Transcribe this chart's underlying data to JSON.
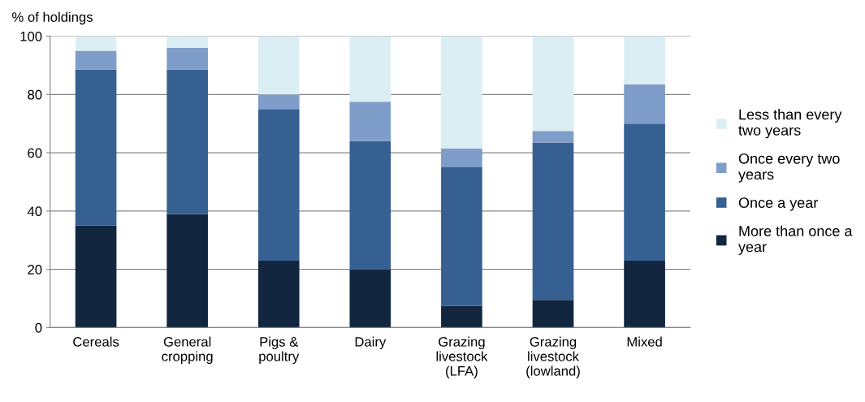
{
  "chart_data": {
    "type": "bar",
    "stacked": true,
    "ylabel": "% of holdings",
    "categories": [
      "Cereals",
      "General\ncropping",
      "Pigs &\npoultry",
      "Dairy",
      "Grazing\nlivestock\n(LFA)",
      "Grazing\nlivestock\n(lowland)",
      "Mixed"
    ],
    "series": [
      {
        "name": "More than once a year",
        "color": "#12263f",
        "values": [
          35,
          39,
          23,
          20,
          7.5,
          9.5,
          23
        ]
      },
      {
        "name": "Once a year",
        "color": "#366092",
        "values": [
          53.5,
          49.5,
          52,
          44,
          47.5,
          54,
          47
        ]
      },
      {
        "name": "Once every two years",
        "color": "#7f9dc9",
        "values": [
          6.5,
          7.5,
          5,
          13.5,
          6.5,
          4,
          13.5
        ]
      },
      {
        "name": "Less than every two years",
        "color": "#dbeef3",
        "values": [
          5,
          4,
          20,
          22.5,
          38.5,
          32.5,
          16.5
        ]
      }
    ],
    "ylim": [
      0,
      100
    ],
    "yticks": [
      0,
      20,
      40,
      60,
      80,
      100
    ],
    "grid": "y",
    "legend": "right"
  }
}
